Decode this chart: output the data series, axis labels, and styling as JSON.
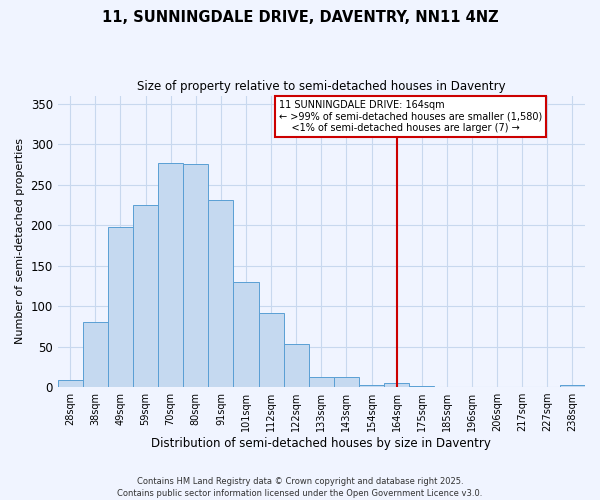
{
  "title": "11, SUNNINGDALE DRIVE, DAVENTRY, NN11 4NZ",
  "subtitle": "Size of property relative to semi-detached houses in Daventry",
  "xlabel": "Distribution of semi-detached houses by size in Daventry",
  "ylabel": "Number of semi-detached properties",
  "bar_labels": [
    "28sqm",
    "38sqm",
    "49sqm",
    "59sqm",
    "70sqm",
    "80sqm",
    "91sqm",
    "101sqm",
    "112sqm",
    "122sqm",
    "133sqm",
    "143sqm",
    "154sqm",
    "164sqm",
    "175sqm",
    "185sqm",
    "196sqm",
    "206sqm",
    "217sqm",
    "227sqm",
    "238sqm"
  ],
  "bar_values": [
    9,
    80,
    198,
    225,
    277,
    275,
    231,
    130,
    92,
    53,
    13,
    13,
    3,
    5,
    1,
    0,
    0,
    0,
    0,
    0,
    2
  ],
  "bar_color": "#c5d9f0",
  "bar_edge_color": "#5a9fd4",
  "vline_x": 13,
  "vline_color": "#cc0000",
  "vline_label_title": "11 SUNNINGDALE DRIVE: 164sqm",
  "vline_label_line1": "← >99% of semi-detached houses are smaller (1,580)",
  "vline_label_line2": "    <1% of semi-detached houses are larger (7) →",
  "ylim": [
    0,
    360
  ],
  "yticks": [
    0,
    50,
    100,
    150,
    200,
    250,
    300,
    350
  ],
  "footnote1": "Contains HM Land Registry data © Crown copyright and database right 2025.",
  "footnote2": "Contains public sector information licensed under the Open Government Licence v3.0.",
  "bg_color": "#f0f4ff",
  "grid_color": "#c8d8ee"
}
